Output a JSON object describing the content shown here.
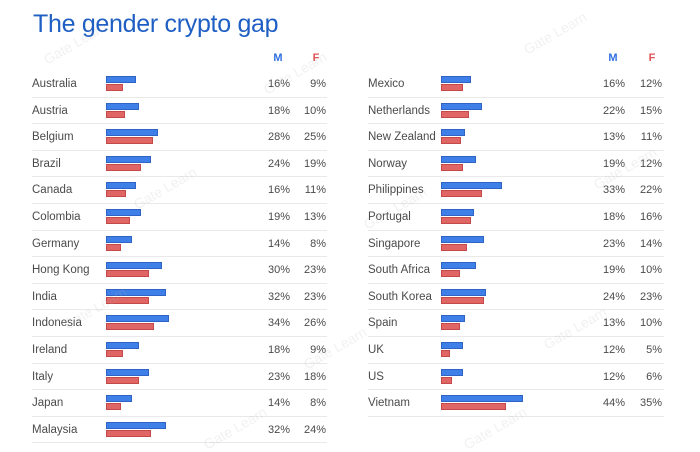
{
  "title": "The gender crypto gap",
  "header_m": "M",
  "header_f": "F",
  "watermark": "Gate Learn",
  "colors": {
    "title": "#1f5fc4",
    "male": "#3f7fe8",
    "female": "#e06565"
  },
  "chart_data": {
    "type": "bar",
    "orientation": "horizontal",
    "title": "The gender crypto gap",
    "unit": "%",
    "series": [
      {
        "name": "M",
        "color": "#3f7fe8"
      },
      {
        "name": "F",
        "color": "#e06565"
      }
    ],
    "columns": [
      [
        {
          "country": "Australia",
          "m": 16,
          "f": 9
        },
        {
          "country": "Austria",
          "m": 18,
          "f": 10
        },
        {
          "country": "Belgium",
          "m": 28,
          "f": 25
        },
        {
          "country": "Brazil",
          "m": 24,
          "f": 19
        },
        {
          "country": "Canada",
          "m": 16,
          "f": 11
        },
        {
          "country": "Colombia",
          "m": 19,
          "f": 13
        },
        {
          "country": "Germany",
          "m": 14,
          "f": 8
        },
        {
          "country": "Hong Kong",
          "m": 30,
          "f": 23
        },
        {
          "country": "India",
          "m": 32,
          "f": 23
        },
        {
          "country": "Indonesia",
          "m": 34,
          "f": 26
        },
        {
          "country": "Ireland",
          "m": 18,
          "f": 9
        },
        {
          "country": "Italy",
          "m": 23,
          "f": 18
        },
        {
          "country": "Japan",
          "m": 14,
          "f": 8
        },
        {
          "country": "Malaysia",
          "m": 32,
          "f": 24
        }
      ],
      [
        {
          "country": "Mexico",
          "m": 16,
          "f": 12
        },
        {
          "country": "Netherlands",
          "m": 22,
          "f": 15
        },
        {
          "country": "New Zealand",
          "m": 13,
          "f": 11
        },
        {
          "country": "Norway",
          "m": 19,
          "f": 12
        },
        {
          "country": "Philippines",
          "m": 33,
          "f": 22
        },
        {
          "country": "Portugal",
          "m": 18,
          "f": 16
        },
        {
          "country": "Singapore",
          "m": 23,
          "f": 14
        },
        {
          "country": "South Africa",
          "m": 19,
          "f": 10
        },
        {
          "country": "South Korea",
          "m": 24,
          "f": 23
        },
        {
          "country": "Spain",
          "m": 13,
          "f": 10
        },
        {
          "country": "UK",
          "m": 12,
          "f": 5
        },
        {
          "country": "US",
          "m": 12,
          "f": 6
        },
        {
          "country": "Vietnam",
          "m": 44,
          "f": 35
        }
      ]
    ]
  }
}
